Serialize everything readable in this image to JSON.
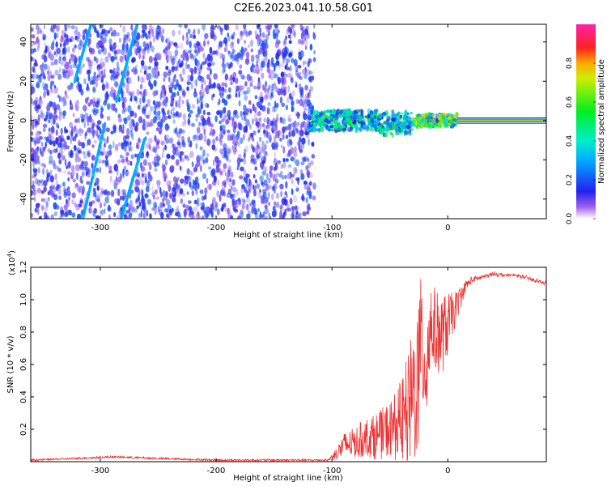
{
  "figure_title": "C2E6.2023.041.10.58.G01",
  "colors": {
    "snr_line": "#ee3333",
    "axis": "#000000",
    "background": "#ffffff",
    "spectrogram_points": "#6a22dd"
  },
  "chart_data": [
    {
      "type": "heatmap",
      "title": "C2E6.2023.041.10.58.G01",
      "xlabel": "Height of straight line (km)",
      "ylabel": "Frequency (Hz)",
      "xlim": [
        -360,
        85
      ],
      "ylim": [
        -50,
        49
      ],
      "xticks": [
        -300,
        -200,
        -100,
        0
      ],
      "yticks": [
        -40,
        -20,
        0,
        20,
        40
      ],
      "colorbar": {
        "label": "Normalized spectral amplitude",
        "range": [
          0.0,
          1.0
        ],
        "ticks": [
          "0.0",
          "0.2",
          "0.4",
          "0.6",
          "0.8"
        ],
        "tick_values": [
          0.0,
          0.2,
          0.4,
          0.6,
          0.8
        ]
      },
      "features": [
        {
          "name": "noise_field",
          "x_range": [
            -360,
            -115
          ],
          "freq_range": [
            -50,
            49
          ],
          "amplitude": 0.15
        },
        {
          "name": "streak_1",
          "x_start": -308,
          "freq_start": 49,
          "x_end": -322,
          "freq_end": 20,
          "amplitude": 0.3
        },
        {
          "name": "streak_2",
          "x_start": -268,
          "freq_start": 49,
          "x_end": -286,
          "freq_end": 10,
          "amplitude": 0.3
        },
        {
          "name": "streak_3",
          "x_start": -296,
          "freq_start": -2,
          "x_end": -315,
          "freq_end": -50,
          "amplitude": 0.3
        },
        {
          "name": "streak_4",
          "x_start": -262,
          "freq_start": -10,
          "x_end": -282,
          "freq_end": -50,
          "amplitude": 0.3
        },
        {
          "name": "signal_band",
          "x_range": [
            -120,
            8
          ],
          "freq_center": 0,
          "amplitude": 0.45
        },
        {
          "name": "carrier_line",
          "x_range": [
            8,
            85
          ],
          "freq": 0,
          "amplitude": 0.8
        }
      ]
    },
    {
      "type": "line",
      "title": "",
      "xlabel": "Height of straight line (km)",
      "ylabel": "SNR (10 * v/v)",
      "scale_label": "(x10",
      "scale_exponent": "4",
      "scale_close": ")",
      "xlim": [
        -360,
        85
      ],
      "ylim": [
        0,
        1.2
      ],
      "xticks": [
        -300,
        -200,
        -100,
        0
      ],
      "yticks": [
        0.2,
        0.4,
        0.6,
        0.8,
        1.0,
        1.2
      ],
      "ytick_labels": [
        "0.2",
        "0.4",
        "0.6",
        "0.8",
        "1.0",
        "1.2"
      ],
      "series": [
        {
          "name": "SNR",
          "x": [
            -360,
            -320,
            -290,
            -250,
            -200,
            -150,
            -120,
            -103,
            -100,
            -95,
            -90,
            -80,
            -70,
            -60,
            -50,
            -40,
            -35,
            -30,
            -25,
            -22,
            -20,
            -18,
            -15,
            -10,
            -5,
            0,
            5,
            10,
            15,
            20,
            30,
            40,
            50,
            60,
            70,
            80,
            85
          ],
          "values": [
            0.01,
            0.02,
            0.03,
            0.02,
            0.01,
            0.01,
            0.01,
            0.01,
            0.03,
            0.06,
            0.1,
            0.12,
            0.15,
            0.16,
            0.2,
            0.25,
            0.3,
            0.4,
            0.55,
            0.75,
            0.6,
            0.65,
            0.85,
            0.8,
            0.78,
            0.85,
            0.92,
            1.0,
            1.08,
            1.12,
            1.14,
            1.16,
            1.15,
            1.15,
            1.13,
            1.11,
            1.1
          ],
          "noise_amplitude": [
            0,
            0,
            0,
            0,
            0,
            0,
            0,
            0,
            0.02,
            0.05,
            0.08,
            0.1,
            0.12,
            0.15,
            0.18,
            0.25,
            0.35,
            0.45,
            0.5,
            0.45,
            0.45,
            0.4,
            0.3,
            0.25,
            0.25,
            0.2,
            0.12,
            0.08,
            0.04,
            0.02,
            0.01,
            0.01,
            0.01,
            0.01,
            0.01,
            0.01,
            0.01
          ]
        }
      ]
    }
  ]
}
